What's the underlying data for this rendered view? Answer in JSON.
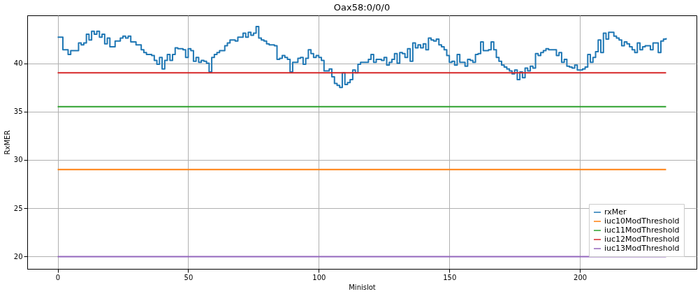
{
  "chart_data": {
    "type": "step",
    "title": "Oax58:0/0/0",
    "xlabel": "Minislot",
    "ylabel": "RxMER",
    "xlim": [
      -11.65,
      244.65
    ],
    "ylim": [
      18.73,
      44.95
    ],
    "xticks": [
      0,
      50,
      100,
      150,
      200
    ],
    "yticks": [
      20,
      25,
      30,
      35,
      40
    ],
    "grid": true,
    "legend": "bottom right",
    "series": [
      {
        "name": "rxMer",
        "color": "#1f77b4",
        "x": [
          0,
          2,
          4,
          5,
          8,
          9,
          10,
          11,
          12,
          13,
          14,
          15,
          16,
          17,
          18,
          19,
          20,
          22,
          24,
          25,
          26,
          27,
          28,
          30,
          32,
          33,
          34,
          36,
          37,
          38,
          39,
          40,
          41,
          42,
          43,
          44,
          45,
          46,
          48,
          49,
          50,
          51,
          52,
          53,
          54,
          55,
          56,
          57,
          58,
          59,
          60,
          61,
          62,
          64,
          65,
          66,
          68,
          69,
          71,
          72,
          73,
          74,
          75,
          76,
          77,
          78,
          79,
          80,
          81,
          83,
          84,
          85,
          86,
          87,
          88,
          89,
          90,
          92,
          93,
          94,
          95,
          96,
          97,
          98,
          99,
          100,
          101,
          102,
          104,
          105,
          106,
          107,
          108,
          109,
          110,
          111,
          112,
          113,
          114,
          115,
          116,
          118,
          119,
          120,
          121,
          122,
          124,
          125,
          126,
          127,
          128,
          129,
          130,
          131,
          132,
          133,
          134,
          135,
          136,
          137,
          138,
          139,
          140,
          141,
          142,
          143,
          144,
          145,
          146,
          147,
          148,
          149,
          150,
          151,
          152,
          153,
          154,
          155,
          156,
          157,
          158,
          159,
          160,
          161,
          162,
          163,
          165,
          166,
          167,
          168,
          169,
          170,
          171,
          172,
          173,
          174,
          175,
          176,
          177,
          178,
          179,
          180,
          181,
          182,
          183,
          184,
          185,
          186,
          187,
          188,
          190,
          191,
          192,
          193,
          194,
          195,
          196,
          197,
          198,
          199,
          201,
          202,
          203,
          204,
          205,
          206,
          207,
          208,
          209,
          210,
          211,
          212,
          213,
          214,
          215,
          216,
          217,
          218,
          219,
          220,
          221,
          222,
          223,
          224,
          225,
          226,
          227,
          228,
          230,
          231,
          232,
          233
        ],
        "values": [
          42.7,
          41.4,
          40.9,
          41.3,
          42.1,
          41.9,
          42.1,
          43.0,
          42.4,
          43.3,
          43.0,
          43.3,
          42.7,
          43.0,
          42.0,
          42.6,
          41.7,
          42.3,
          42.6,
          42.8,
          42.6,
          42.8,
          42.2,
          41.9,
          41.4,
          41.1,
          40.9,
          40.8,
          40.3,
          39.9,
          40.6,
          39.4,
          40.3,
          40.9,
          40.3,
          40.9,
          41.6,
          41.5,
          41.4,
          40.6,
          41.5,
          41.3,
          40.2,
          40.6,
          40.1,
          40.3,
          40.2,
          40.0,
          39.1,
          40.6,
          40.9,
          41.1,
          41.3,
          41.8,
          42.1,
          42.4,
          42.3,
          42.7,
          43.1,
          42.7,
          43.2,
          42.9,
          43.1,
          43.8,
          42.6,
          42.4,
          42.3,
          42.0,
          41.9,
          41.8,
          40.4,
          40.5,
          40.8,
          40.6,
          40.4,
          39.1,
          40.1,
          40.5,
          40.6,
          39.9,
          40.5,
          41.4,
          41.0,
          40.6,
          40.8,
          40.6,
          40.3,
          39.2,
          39.4,
          38.6,
          37.9,
          37.7,
          37.5,
          39.0,
          37.8,
          38.0,
          38.3,
          39.3,
          39.0,
          39.9,
          40.1,
          40.1,
          40.4,
          40.9,
          40.1,
          40.4,
          40.3,
          40.6,
          39.8,
          40.1,
          40.4,
          41.0,
          40.0,
          41.1,
          41.0,
          40.6,
          41.5,
          40.2,
          42.1,
          41.6,
          41.9,
          41.6,
          42.0,
          41.4,
          42.6,
          42.4,
          42.3,
          42.5,
          41.9,
          41.7,
          41.4,
          40.8,
          40.1,
          40.2,
          39.8,
          40.9,
          40.1,
          40.1,
          39.7,
          40.4,
          40.3,
          40.1,
          40.9,
          41.0,
          42.2,
          41.3,
          41.4,
          42.2,
          41.4,
          40.6,
          40.2,
          39.8,
          39.6,
          39.4,
          39.2,
          38.9,
          39.3,
          38.3,
          39.1,
          38.5,
          39.5,
          39.2,
          39.7,
          39.5,
          41.0,
          40.8,
          41.1,
          41.3,
          41.5,
          41.4,
          41.4,
          40.8,
          41.1,
          40.1,
          40.4,
          39.7,
          39.6,
          39.5,
          39.8,
          39.3,
          39.4,
          39.6,
          40.9,
          40.1,
          40.6,
          41.2,
          42.4,
          41.1,
          43.1,
          42.5,
          43.2,
          43.2,
          42.8,
          42.6,
          42.4,
          41.8,
          42.2,
          42.0,
          41.7,
          41.4,
          41.1,
          42.1,
          41.4,
          41.7,
          41.8,
          41.8,
          41.4,
          42.1,
          41.1,
          42.3,
          42.5,
          42.6
        ]
      },
      {
        "name": "iuc10ModThreshold",
        "type": "line",
        "color": "#ff7f0e",
        "x": [
          0,
          233
        ],
        "values": [
          29,
          29
        ]
      },
      {
        "name": "iuc11ModThreshold",
        "type": "line",
        "color": "#2ca02c",
        "x": [
          0,
          233
        ],
        "values": [
          35.5,
          35.5
        ]
      },
      {
        "name": "iuc12ModThreshold",
        "type": "line",
        "color": "#d62728",
        "x": [
          0,
          233
        ],
        "values": [
          39,
          39
        ]
      },
      {
        "name": "iuc13ModThreshold",
        "type": "line",
        "color": "#9467bd",
        "x": [
          0,
          233
        ],
        "values": [
          20,
          20
        ]
      }
    ]
  }
}
